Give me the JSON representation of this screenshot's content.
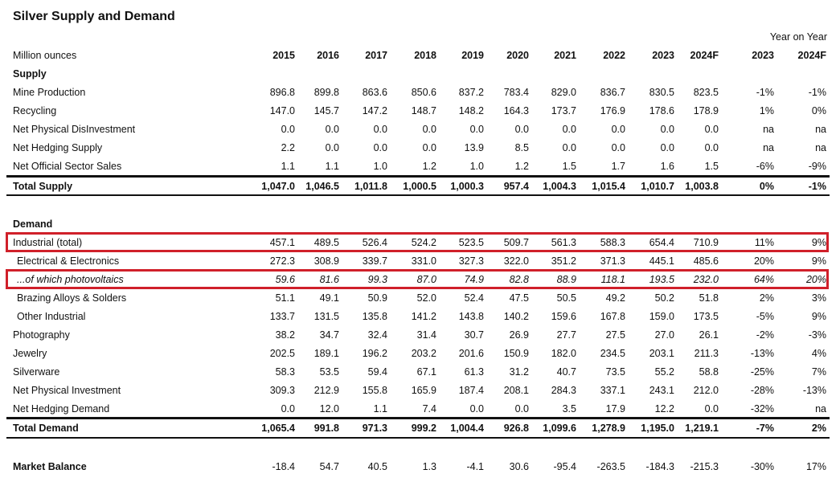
{
  "title": "Silver Supply and Demand",
  "yoy_label": "Year on Year",
  "header": {
    "label": "Million ounces",
    "columns": [
      "2015",
      "2016",
      "2017",
      "2018",
      "2019",
      "2020",
      "2021",
      "2022",
      "2023",
      "2024F",
      "2023",
      "2024F"
    ]
  },
  "supply": {
    "label": "Supply",
    "rows": [
      {
        "label": "Mine Production",
        "values": [
          "896.8",
          "899.8",
          "863.6",
          "850.6",
          "837.2",
          "783.4",
          "829.0",
          "836.7",
          "830.5",
          "823.5",
          "-1%",
          "-1%"
        ]
      },
      {
        "label": "Recycling",
        "values": [
          "147.0",
          "145.7",
          "147.2",
          "148.7",
          "148.2",
          "164.3",
          "173.7",
          "176.9",
          "178.6",
          "178.9",
          "1%",
          "0%"
        ]
      },
      {
        "label": "Net Physical DisInvestment",
        "values": [
          "0.0",
          "0.0",
          "0.0",
          "0.0",
          "0.0",
          "0.0",
          "0.0",
          "0.0",
          "0.0",
          "0.0",
          "na",
          "na"
        ]
      },
      {
        "label": "Net Hedging Supply",
        "values": [
          "2.2",
          "0.0",
          "0.0",
          "0.0",
          "13.9",
          "8.5",
          "0.0",
          "0.0",
          "0.0",
          "0.0",
          "na",
          "na"
        ]
      },
      {
        "label": "Net Official Sector Sales",
        "values": [
          "1.1",
          "1.1",
          "1.0",
          "1.2",
          "1.0",
          "1.2",
          "1.5",
          "1.7",
          "1.6",
          "1.5",
          "-6%",
          "-9%"
        ]
      }
    ],
    "total": {
      "label": "Total Supply",
      "values": [
        "1,047.0",
        "1,046.5",
        "1,011.8",
        "1,000.5",
        "1,000.3",
        "957.4",
        "1,004.3",
        "1,015.4",
        "1,010.7",
        "1,003.8",
        "0%",
        "-1%"
      ]
    }
  },
  "demand": {
    "label": "Demand",
    "rows": [
      {
        "label": "Industrial (total)",
        "values": [
          "457.1",
          "489.5",
          "526.4",
          "524.2",
          "523.5",
          "509.7",
          "561.3",
          "588.3",
          "654.4",
          "710.9",
          "11%",
          "9%"
        ]
      },
      {
        "label": "Electrical & Electronics",
        "values": [
          "272.3",
          "308.9",
          "339.7",
          "331.0",
          "327.3",
          "322.0",
          "351.2",
          "371.3",
          "445.1",
          "485.6",
          "20%",
          "9%"
        ]
      },
      {
        "label": "...of which photovoltaics",
        "values": [
          "59.6",
          "81.6",
          "99.3",
          "87.0",
          "74.9",
          "82.8",
          "88.9",
          "118.1",
          "193.5",
          "232.0",
          "64%",
          "20%"
        ]
      },
      {
        "label": "Brazing Alloys & Solders",
        "values": [
          "51.1",
          "49.1",
          "50.9",
          "52.0",
          "52.4",
          "47.5",
          "50.5",
          "49.2",
          "50.2",
          "51.8",
          "2%",
          "3%"
        ]
      },
      {
        "label": "Other Industrial",
        "values": [
          "133.7",
          "131.5",
          "135.8",
          "141.2",
          "143.8",
          "140.2",
          "159.6",
          "167.8",
          "159.0",
          "173.5",
          "-5%",
          "9%"
        ]
      },
      {
        "label": "Photography",
        "values": [
          "38.2",
          "34.7",
          "32.4",
          "31.4",
          "30.7",
          "26.9",
          "27.7",
          "27.5",
          "27.0",
          "26.1",
          "-2%",
          "-3%"
        ]
      },
      {
        "label": "Jewelry",
        "values": [
          "202.5",
          "189.1",
          "196.2",
          "203.2",
          "201.6",
          "150.9",
          "182.0",
          "234.5",
          "203.1",
          "211.3",
          "-13%",
          "4%"
        ]
      },
      {
        "label": "Silverware",
        "values": [
          "58.3",
          "53.5",
          "59.4",
          "67.1",
          "61.3",
          "31.2",
          "40.7",
          "73.5",
          "55.2",
          "58.8",
          "-25%",
          "7%"
        ]
      },
      {
        "label": "Net Physical Investment",
        "values": [
          "309.3",
          "212.9",
          "155.8",
          "165.9",
          "187.4",
          "208.1",
          "284.3",
          "337.1",
          "243.1",
          "212.0",
          "-28%",
          "-13%"
        ]
      },
      {
        "label": "Net Hedging Demand",
        "values": [
          "0.0",
          "12.0",
          "1.1",
          "7.4",
          "0.0",
          "0.0",
          "3.5",
          "17.9",
          "12.2",
          "0.0",
          "-32%",
          "na"
        ]
      }
    ],
    "total": {
      "label": "Total Demand",
      "values": [
        "1,065.4",
        "991.8",
        "971.3",
        "999.2",
        "1,004.4",
        "926.8",
        "1,099.6",
        "1,278.9",
        "1,195.0",
        "1,219.1",
        "-7%",
        "2%"
      ]
    }
  },
  "market_balance": {
    "label": "Market Balance",
    "values": [
      "-18.4",
      "54.7",
      "40.5",
      "1.3",
      "-4.1",
      "30.6",
      "-95.4",
      "-263.5",
      "-184.3",
      "-215.3",
      "-30%",
      "17%"
    ]
  }
}
